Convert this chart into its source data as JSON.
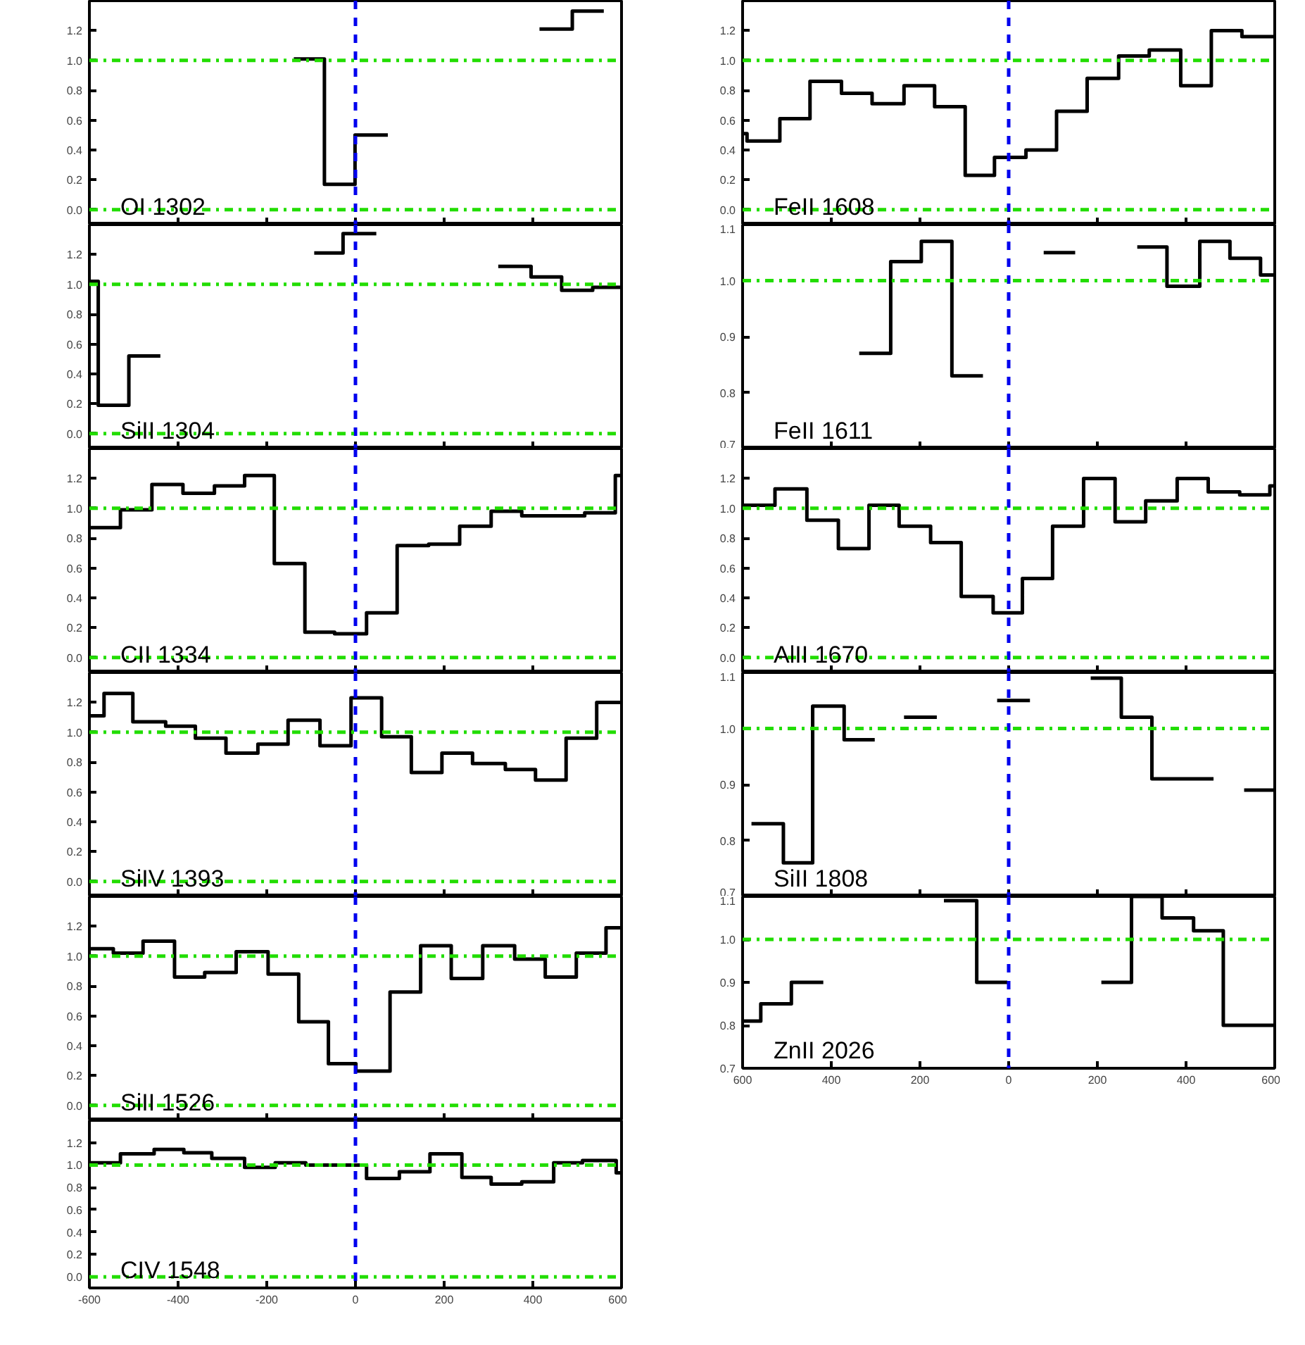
{
  "chart_data": [
    {
      "type": "step",
      "xlim": [
        -600,
        600
      ],
      "ylim": [
        -0.1,
        1.4
      ],
      "tick_labels": "y",
      "xticks": [
        -600,
        -400,
        -200,
        0,
        200,
        400,
        600
      ],
      "yticks": [
        {
          "value": 0,
          "label": "0.0"
        },
        {
          "value": 0.2,
          "label": "0.2"
        },
        {
          "value": 0.4,
          "label": "0.4"
        },
        {
          "value": 0.6,
          "label": "0.6"
        },
        {
          "value": 0.8,
          "label": "0.8"
        },
        {
          "value": 1.0,
          "label": "1.0"
        },
        {
          "value": 1.2,
          "label": "1.2"
        }
      ],
      "annotations": [
        "OI 1302"
      ],
      "ref_lines": [
        {
          "axis": "x",
          "value": 0,
          "color": "#0000ee",
          "line_style": "dashed"
        },
        {
          "axis": "y",
          "value": 0,
          "color": "#22dd00",
          "line_style": "dashdot"
        },
        {
          "axis": "y",
          "value": 1,
          "color": "#22dd00",
          "line_style": "dashdot"
        }
      ],
      "series": [
        {
          "color": "#000000",
          "x": [
            -139,
            -70,
            -1,
            73
          ],
          "values": [
            1.01,
            0.17,
            0.5,
            0.5
          ]
        },
        {
          "color": "#000000",
          "x": [
            415,
            489,
            560
          ],
          "values": [
            1.21,
            1.33,
            1.33
          ]
        }
      ]
    },
    {
      "type": "step",
      "xlim": [
        -600,
        600
      ],
      "ylim": [
        -0.1,
        1.4
      ],
      "tick_labels": "y",
      "xticks": [
        -600,
        -400,
        -200,
        0,
        200,
        400,
        600
      ],
      "yticks": [
        {
          "value": 0,
          "label": "0.0"
        },
        {
          "value": 0.2,
          "label": "0.2"
        },
        {
          "value": 0.4,
          "label": "0.4"
        },
        {
          "value": 0.6,
          "label": "0.6"
        },
        {
          "value": 0.8,
          "label": "0.8"
        },
        {
          "value": 1.0,
          "label": "1.0"
        },
        {
          "value": 1.2,
          "label": "1.2"
        }
      ],
      "annotations": [
        "SiII 1304"
      ],
      "ref_lines": [
        {
          "axis": "x",
          "value": 0,
          "color": "#0000ee",
          "line_style": "dashed"
        },
        {
          "axis": "y",
          "value": 0,
          "color": "#22dd00",
          "line_style": "dashdot"
        },
        {
          "axis": "y",
          "value": 1,
          "color": "#22dd00",
          "line_style": "dashdot"
        }
      ],
      "series": [
        {
          "color": "#000000",
          "x": [
            -600,
            -580,
            -511,
            -440
          ],
          "values": [
            1.02,
            0.19,
            0.52,
            0.52
          ]
        },
        {
          "color": "#000000",
          "x": [
            -93,
            -28,
            47
          ],
          "values": [
            1.21,
            1.34,
            1.34
          ]
        },
        {
          "color": "#000000",
          "x": [
            322,
            396,
            465,
            535,
            600
          ],
          "values": [
            1.12,
            1.05,
            0.96,
            0.98,
            0.98
          ]
        }
      ]
    },
    {
      "type": "step",
      "xlim": [
        -600,
        600
      ],
      "ylim": [
        -0.1,
        1.4
      ],
      "tick_labels": "y",
      "xticks": [
        -600,
        -400,
        -200,
        0,
        200,
        400,
        600
      ],
      "yticks": [
        {
          "value": 0,
          "label": "0.0"
        },
        {
          "value": 0.2,
          "label": "0.2"
        },
        {
          "value": 0.4,
          "label": "0.4"
        },
        {
          "value": 0.6,
          "label": "0.6"
        },
        {
          "value": 0.8,
          "label": "0.8"
        },
        {
          "value": 1.0,
          "label": "1.0"
        },
        {
          "value": 1.2,
          "label": "1.2"
        }
      ],
      "annotations": [
        "CII 1334"
      ],
      "ref_lines": [
        {
          "axis": "x",
          "value": 0,
          "color": "#0000ee",
          "line_style": "dashed"
        },
        {
          "axis": "y",
          "value": 0,
          "color": "#22dd00",
          "line_style": "dashdot"
        },
        {
          "axis": "y",
          "value": 1,
          "color": "#22dd00",
          "line_style": "dashdot"
        }
      ],
      "series": [
        {
          "color": "#000000",
          "x": [
            -600,
            -530,
            -459,
            -389,
            -318,
            -250,
            -183,
            -114,
            -47,
            25,
            94,
            165,
            235,
            306,
            375,
            447,
            517,
            586,
            600
          ],
          "values": [
            0.87,
            0.99,
            1.16,
            1.1,
            1.15,
            1.22,
            0.63,
            0.17,
            0.16,
            0.3,
            0.75,
            0.76,
            0.88,
            0.98,
            0.95,
            0.95,
            0.97,
            1.22,
            1.22
          ]
        }
      ]
    },
    {
      "type": "step",
      "xlim": [
        -600,
        600
      ],
      "ylim": [
        -0.1,
        1.4
      ],
      "tick_labels": "y",
      "xticks": [
        -600,
        -400,
        -200,
        0,
        200,
        400,
        600
      ],
      "yticks": [
        {
          "value": 0,
          "label": "0.0"
        },
        {
          "value": 0.2,
          "label": "0.2"
        },
        {
          "value": 0.4,
          "label": "0.4"
        },
        {
          "value": 0.6,
          "label": "0.6"
        },
        {
          "value": 0.8,
          "label": "0.8"
        },
        {
          "value": 1.0,
          "label": "1.0"
        },
        {
          "value": 1.2,
          "label": "1.2"
        }
      ],
      "annotations": [
        "SiIV 1393"
      ],
      "ref_lines": [
        {
          "axis": "x",
          "value": 0,
          "color": "#0000ee",
          "line_style": "dashed"
        },
        {
          "axis": "y",
          "value": 0,
          "color": "#22dd00",
          "line_style": "dashdot"
        },
        {
          "axis": "y",
          "value": 1,
          "color": "#22dd00",
          "line_style": "dashdot"
        }
      ],
      "series": [
        {
          "color": "#000000",
          "x": [
            -600,
            -567,
            -502,
            -428,
            -361,
            -292,
            -220,
            -152,
            -80,
            -10,
            59,
            126,
            195,
            264,
            338,
            406,
            475,
            544,
            600
          ],
          "values": [
            1.11,
            1.26,
            1.07,
            1.04,
            0.96,
            0.86,
            0.92,
            1.08,
            0.91,
            1.23,
            0.97,
            0.73,
            0.86,
            0.79,
            0.75,
            0.68,
            0.96,
            1.2,
            1.2
          ]
        }
      ]
    },
    {
      "type": "step",
      "xlim": [
        -600,
        600
      ],
      "ylim": [
        -0.1,
        1.4
      ],
      "tick_labels": "y",
      "xticks": [
        -600,
        -400,
        -200,
        0,
        200,
        400,
        600
      ],
      "yticks": [
        {
          "value": 0,
          "label": "0.0"
        },
        {
          "value": 0.2,
          "label": "0.2"
        },
        {
          "value": 0.4,
          "label": "0.4"
        },
        {
          "value": 0.6,
          "label": "0.6"
        },
        {
          "value": 0.8,
          "label": "0.8"
        },
        {
          "value": 1.0,
          "label": "1.0"
        },
        {
          "value": 1.2,
          "label": "1.2"
        }
      ],
      "annotations": [
        "SiII 1526"
      ],
      "ref_lines": [
        {
          "axis": "x",
          "value": 0,
          "color": "#0000ee",
          "line_style": "dashed"
        },
        {
          "axis": "y",
          "value": 0,
          "color": "#22dd00",
          "line_style": "dashdot"
        },
        {
          "axis": "y",
          "value": 1,
          "color": "#22dd00",
          "line_style": "dashdot"
        }
      ],
      "series": [
        {
          "color": "#000000",
          "x": [
            -600,
            -546,
            -479,
            -408,
            -340,
            -269,
            -197,
            -128,
            -61,
            1,
            78,
            147,
            216,
            287,
            359,
            428,
            498,
            565,
            600
          ],
          "values": [
            1.05,
            1.02,
            1.1,
            0.86,
            0.89,
            1.03,
            0.88,
            0.56,
            0.28,
            0.23,
            0.76,
            1.07,
            0.85,
            1.07,
            0.98,
            0.86,
            1.02,
            1.19,
            1.19
          ]
        }
      ]
    },
    {
      "type": "step",
      "xlim": [
        -600,
        600
      ],
      "ylim": [
        -0.1,
        1.4
      ],
      "xticks": [
        -600,
        -400,
        -200,
        0,
        200,
        400,
        600
      ],
      "yticks": [
        {
          "value": 0,
          "label": "0.0"
        },
        {
          "value": 0.2,
          "label": "0.2"
        },
        {
          "value": 0.4,
          "label": "0.4"
        },
        {
          "value": 0.6,
          "label": "0.6"
        },
        {
          "value": 0.8,
          "label": "0.8"
        },
        {
          "value": 1.0,
          "label": "1.0"
        },
        {
          "value": 1.2,
          "label": "1.2"
        }
      ],
      "annotations": [
        "CIV 1548"
      ],
      "ref_lines": [
        {
          "axis": "x",
          "value": 0,
          "color": "#0000ee",
          "line_style": "dashed"
        },
        {
          "axis": "y",
          "value": 0,
          "color": "#22dd00",
          "line_style": "dashdot"
        },
        {
          "axis": "y",
          "value": 1,
          "color": "#22dd00",
          "line_style": "dashdot"
        }
      ],
      "series": [
        {
          "color": "#000000",
          "x": [
            -600,
            -530,
            -454,
            -387,
            -324,
            -250,
            -181,
            -112,
            25,
            99,
            168,
            240,
            306,
            375,
            447,
            512,
            588,
            600
          ],
          "values": [
            1.02,
            1.1,
            1.14,
            1.11,
            1.06,
            0.98,
            1.02,
            1.0,
            0.88,
            0.94,
            1.1,
            0.89,
            0.83,
            0.85,
            1.02,
            1.04,
            0.93,
            0.93
          ]
        }
      ]
    },
    {
      "type": "step",
      "xlim": [
        -600,
        600
      ],
      "ylim": [
        -0.1,
        1.4
      ],
      "tick_labels": "y",
      "xticks": [
        -600,
        -400,
        -200,
        0,
        200,
        400,
        600
      ],
      "yticks": [
        {
          "value": 0,
          "label": "0.0"
        },
        {
          "value": 0.2,
          "label": "0.2"
        },
        {
          "value": 0.4,
          "label": "0.4"
        },
        {
          "value": 0.6,
          "label": "0.6"
        },
        {
          "value": 0.8,
          "label": "0.8"
        },
        {
          "value": 1.0,
          "label": "1.0"
        },
        {
          "value": 1.2,
          "label": "1.2"
        }
      ],
      "annotations": [
        "FeII 1608"
      ],
      "ref_lines": [
        {
          "axis": "x",
          "value": 0,
          "color": "#0000ee",
          "line_style": "dashed"
        },
        {
          "axis": "y",
          "value": 0,
          "color": "#22dd00",
          "line_style": "dashdot"
        },
        {
          "axis": "y",
          "value": 1,
          "color": "#22dd00",
          "line_style": "dashdot"
        }
      ],
      "series": [
        {
          "color": "#000000",
          "x": [
            -600,
            -590,
            -516,
            -448,
            -377,
            -308,
            -236,
            -167,
            -98,
            -32,
            39,
            108,
            177,
            248,
            317,
            388,
            457,
            526,
            600
          ],
          "values": [
            0.51,
            0.46,
            0.61,
            0.86,
            0.78,
            0.71,
            0.83,
            0.69,
            0.23,
            0.35,
            0.4,
            0.66,
            0.88,
            1.03,
            1.07,
            0.83,
            1.2,
            1.16,
            1.16
          ]
        }
      ]
    },
    {
      "type": "step",
      "xlim": [
        -600,
        600
      ],
      "ylim": [
        0.7,
        1.1
      ],
      "tick_labels": "y",
      "xticks": [
        -600,
        -400,
        -200,
        0,
        200,
        400,
        600
      ],
      "yticks": [
        {
          "value": 0.7,
          "label": "0.7"
        },
        {
          "value": 0.8,
          "label": "0.8"
        },
        {
          "value": 0.9,
          "label": "0.9"
        },
        {
          "value": 1.0,
          "label": "1.0"
        },
        {
          "value": 1.1,
          "label": "1.1"
        }
      ],
      "annotations": [
        "FeII 1611"
      ],
      "ref_lines": [
        {
          "axis": "x",
          "value": 0,
          "color": "#0000ee",
          "line_style": "dashed"
        },
        {
          "axis": "y",
          "value": 1,
          "color": "#22dd00",
          "line_style": "dashdot"
        }
      ],
      "series": [
        {
          "color": "#000000",
          "x": [
            -337,
            -266,
            -197,
            -128,
            -58
          ],
          "values": [
            0.87,
            1.034,
            1.07,
            0.83,
            0.83
          ]
        },
        {
          "color": "#000000",
          "x": [
            79,
            150
          ],
          "values": [
            1.05,
            1.05
          ]
        },
        {
          "color": "#000000",
          "x": [
            290,
            357,
            431,
            499,
            568,
            600
          ],
          "values": [
            1.06,
            0.99,
            1.07,
            1.04,
            1.01,
            1.01
          ]
        }
      ]
    },
    {
      "type": "step",
      "xlim": [
        -600,
        600
      ],
      "ylim": [
        -0.1,
        1.4
      ],
      "tick_labels": "y",
      "xticks": [
        -600,
        -400,
        -200,
        0,
        200,
        400,
        600
      ],
      "yticks": [
        {
          "value": 0,
          "label": "0.0"
        },
        {
          "value": 0.2,
          "label": "0.2"
        },
        {
          "value": 0.4,
          "label": "0.4"
        },
        {
          "value": 0.6,
          "label": "0.6"
        },
        {
          "value": 0.8,
          "label": "0.8"
        },
        {
          "value": 1.0,
          "label": "1.0"
        },
        {
          "value": 1.2,
          "label": "1.2"
        }
      ],
      "annotations": [
        "AlII 1670"
      ],
      "ref_lines": [
        {
          "axis": "x",
          "value": 0,
          "color": "#0000ee",
          "line_style": "dashed"
        },
        {
          "axis": "y",
          "value": 0,
          "color": "#22dd00",
          "line_style": "dashdot"
        },
        {
          "axis": "y",
          "value": 1,
          "color": "#22dd00",
          "line_style": "dashdot"
        }
      ],
      "series": [
        {
          "color": "#000000",
          "x": [
            -600,
            -527,
            -455,
            -384,
            -315,
            -247,
            -176,
            -107,
            -35,
            31,
            99,
            169,
            240,
            309,
            380,
            450,
            521,
            589,
            600
          ],
          "values": [
            1.02,
            1.13,
            0.92,
            0.73,
            1.02,
            0.88,
            0.77,
            0.41,
            0.3,
            0.53,
            0.88,
            1.2,
            0.91,
            1.05,
            1.2,
            1.11,
            1.09,
            1.15,
            1.15
          ]
        }
      ]
    },
    {
      "type": "step",
      "xlim": [
        -600,
        600
      ],
      "ylim": [
        0.7,
        1.1
      ],
      "tick_labels": "y",
      "xticks": [
        -600,
        -400,
        -200,
        0,
        200,
        400,
        600
      ],
      "yticks": [
        {
          "value": 0.7,
          "label": "0.7"
        },
        {
          "value": 0.8,
          "label": "0.8"
        },
        {
          "value": 0.9,
          "label": "0.9"
        },
        {
          "value": 1.0,
          "label": "1.0"
        },
        {
          "value": 1.1,
          "label": "1.1"
        }
      ],
      "annotations": [
        "SiII 1808"
      ],
      "ref_lines": [
        {
          "axis": "x",
          "value": 0,
          "color": "#0000ee",
          "line_style": "dashed"
        },
        {
          "axis": "y",
          "value": 1,
          "color": "#22dd00",
          "line_style": "dashdot"
        }
      ],
      "series": [
        {
          "color": "#000000",
          "x": [
            -580,
            -508,
            -442,
            -371,
            -302
          ],
          "values": [
            0.83,
            0.76,
            1.04,
            0.98,
            0.98
          ]
        },
        {
          "color": "#000000",
          "x": [
            -236,
            -162
          ],
          "values": [
            1.02,
            1.02
          ]
        },
        {
          "color": "#000000",
          "x": [
            -26,
            48
          ],
          "values": [
            1.05,
            1.05
          ]
        },
        {
          "color": "#000000",
          "x": [
            185,
            254,
            323,
            462
          ],
          "values": [
            1.09,
            1.02,
            0.91,
            0.91
          ]
        },
        {
          "color": "#000000",
          "x": [
            531,
            600
          ],
          "values": [
            0.89,
            0.89
          ]
        }
      ]
    },
    {
      "type": "step",
      "xlim": [
        -600,
        600
      ],
      "ylim": [
        0.7,
        1.1
      ],
      "xticks": [
        {
          "value": -600,
          "label": "600"
        },
        {
          "value": -400,
          "label": "400"
        },
        {
          "value": -200,
          "label": "200"
        },
        0,
        200,
        400,
        600
      ],
      "yticks": [
        {
          "value": 0.7,
          "label": "0.7"
        },
        {
          "value": 0.8,
          "label": "0.8"
        },
        {
          "value": 0.9,
          "label": "0.9"
        },
        {
          "value": 1.0,
          "label": "1.0"
        },
        {
          "value": 1.1,
          "label": "1.1"
        }
      ],
      "annotations": [
        "ZnII 2026"
      ],
      "ref_lines": [
        {
          "axis": "x",
          "value": 0,
          "color": "#0000ee",
          "line_style": "dashed"
        },
        {
          "axis": "y",
          "value": 1,
          "color": "#22dd00",
          "line_style": "dashdot"
        }
      ],
      "series": [
        {
          "color": "#000000",
          "x": [
            -600,
            -559,
            -490,
            -418
          ],
          "values": [
            0.81,
            0.85,
            0.9,
            0.9
          ]
        },
        {
          "color": "#000000",
          "x": [
            -146,
            -72,
            -3
          ],
          "values": [
            1.09,
            0.9,
            0.9
          ]
        },
        {
          "color": "#000000",
          "x": [
            209,
            277,
            346,
            417,
            484,
            600
          ],
          "values": [
            0.9,
            1.1,
            1.05,
            1.02,
            0.8,
            0.8
          ]
        }
      ]
    }
  ]
}
